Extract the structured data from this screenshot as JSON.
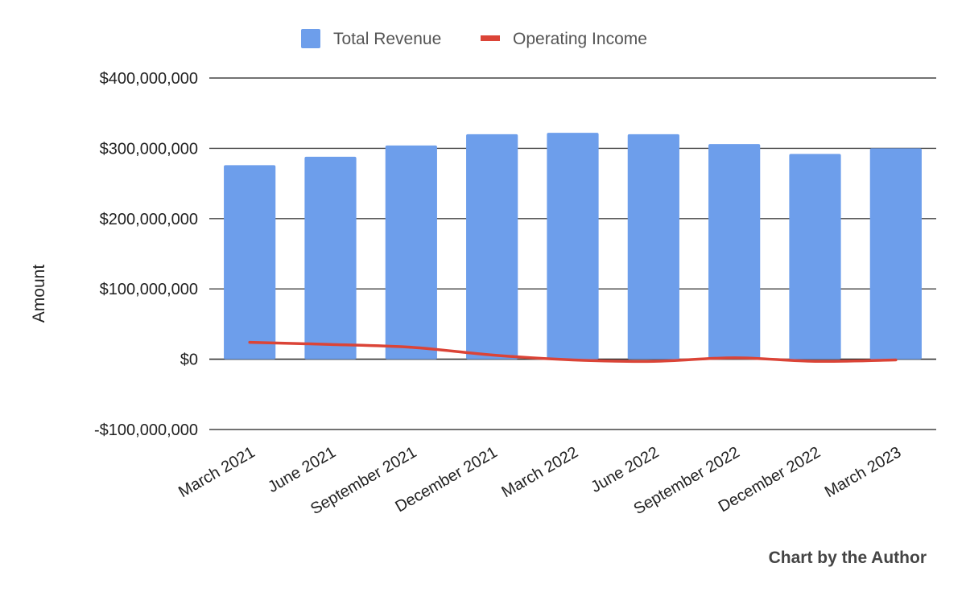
{
  "chart_data": {
    "type": "bar",
    "title": "",
    "xlabel": "",
    "ylabel": "Amount",
    "ylim": [
      -100000000,
      400000000
    ],
    "yticks": [
      -100000000,
      0,
      100000000,
      200000000,
      300000000,
      400000000
    ],
    "ytick_labels": [
      "-$100,000,000",
      "$0",
      "$100,000,000",
      "$200,000,000",
      "$300,000,000",
      "$400,000,000"
    ],
    "grid": true,
    "legend_position": "top",
    "categories": [
      "March 2021",
      "June 2021",
      "September 2021",
      "December 2021",
      "March 2022",
      "June 2022",
      "September 2022",
      "December 2022",
      "March 2023"
    ],
    "series": [
      {
        "name": "Total Revenue",
        "kind": "bar",
        "color": "#6d9eeb",
        "values": [
          276000000,
          288000000,
          304000000,
          320000000,
          322000000,
          320000000,
          306000000,
          292000000,
          300000000
        ]
      },
      {
        "name": "Operating Income",
        "kind": "line",
        "color": "#db4437",
        "values": [
          24000000,
          21000000,
          17000000,
          6000000,
          -1000000,
          -3000000,
          2000000,
          -3000000,
          -1000000
        ]
      }
    ]
  },
  "credit": "Chart by the Author"
}
